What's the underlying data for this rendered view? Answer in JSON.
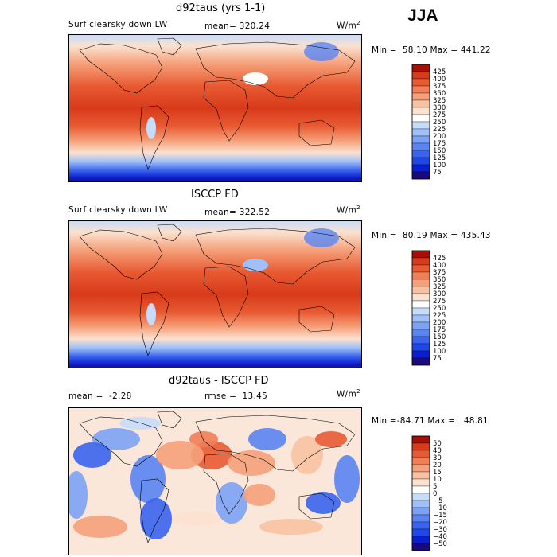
{
  "season": "JJA",
  "panels": [
    {
      "title": "d92taus (yrs 1-1)",
      "left_label": "Surf clearsky down LW",
      "stat_label": "mean=",
      "stat_value": "320.24",
      "units": "W/m",
      "units_exp": "2",
      "min": "58.10",
      "max": "441.22",
      "min_label": "Min =",
      "max_label": "Max =",
      "map_kind": "field_model"
    },
    {
      "title": "ISCCP FD",
      "left_label": "Surf clearsky down LW",
      "stat_label": "mean=",
      "stat_value": "322.52",
      "units": "W/m",
      "units_exp": "2",
      "min": "80.19",
      "max": "435.43",
      "min_label": "Min =",
      "max_label": "Max =",
      "map_kind": "field_obs"
    },
    {
      "title": "d92taus - ISCCP FD",
      "left_label": "mean =",
      "left_value": "-2.28",
      "stat_label": "rmse =",
      "stat_value": "13.45",
      "units": "W/m",
      "units_exp": "2",
      "min": "-84.71",
      "max": "48.81",
      "min_label": "Min =",
      "max_label": "Max =",
      "map_kind": "diff"
    }
  ],
  "chart_data": [
    {
      "type": "heatmap",
      "title": "d92taus (yrs 1-1)",
      "variable": "Surf clearsky down LW",
      "mean": 320.24,
      "min": 58.1,
      "max": 441.22,
      "units": "W/m2",
      "colorbar_levels": [
        75,
        100,
        125,
        150,
        175,
        200,
        225,
        250,
        275,
        300,
        325,
        350,
        375,
        400,
        425
      ],
      "colorbar_colors": [
        "#1a0a80",
        "#0a1fcf",
        "#1e46e8",
        "#3a64ee",
        "#5a84f2",
        "#7ca2f5",
        "#9fc0f8",
        "#c5dcfa",
        "#ffffff",
        "#fbe1cf",
        "#f8c2a2",
        "#f5a07a",
        "#f17e55",
        "#e85a32",
        "#d83a1a",
        "#a60e08"
      ]
    },
    {
      "type": "heatmap",
      "title": "ISCCP FD",
      "variable": "Surf clearsky down LW",
      "mean": 322.52,
      "min": 80.19,
      "max": 435.43,
      "units": "W/m2",
      "colorbar_levels": [
        75,
        100,
        125,
        150,
        175,
        200,
        225,
        250,
        275,
        300,
        325,
        350,
        375,
        400,
        425
      ],
      "colorbar_colors": [
        "#1a0a80",
        "#0a1fcf",
        "#1e46e8",
        "#3a64ee",
        "#5a84f2",
        "#7ca2f5",
        "#9fc0f8",
        "#c5dcfa",
        "#ffffff",
        "#fbe1cf",
        "#f8c2a2",
        "#f5a07a",
        "#f17e55",
        "#e85a32",
        "#d83a1a",
        "#a60e08"
      ]
    },
    {
      "type": "heatmap",
      "title": "d92taus - ISCCP FD",
      "mean": -2.28,
      "rmse": 13.45,
      "min": -84.71,
      "max": 48.81,
      "units": "W/m2",
      "colorbar_levels": [
        -50,
        -40,
        -30,
        -20,
        -15,
        -10,
        -5,
        0,
        5,
        10,
        15,
        20,
        30,
        40,
        50
      ],
      "colorbar_colors": [
        "#1a0a80",
        "#0a1fcf",
        "#1e46e8",
        "#3a64ee",
        "#5a84f2",
        "#7ca2f5",
        "#9fc0f8",
        "#c5dcfa",
        "#ffffff",
        "#fbe1cf",
        "#f8c2a2",
        "#f5a07a",
        "#f17e55",
        "#e85a32",
        "#d83a1a",
        "#a60e08"
      ]
    }
  ]
}
